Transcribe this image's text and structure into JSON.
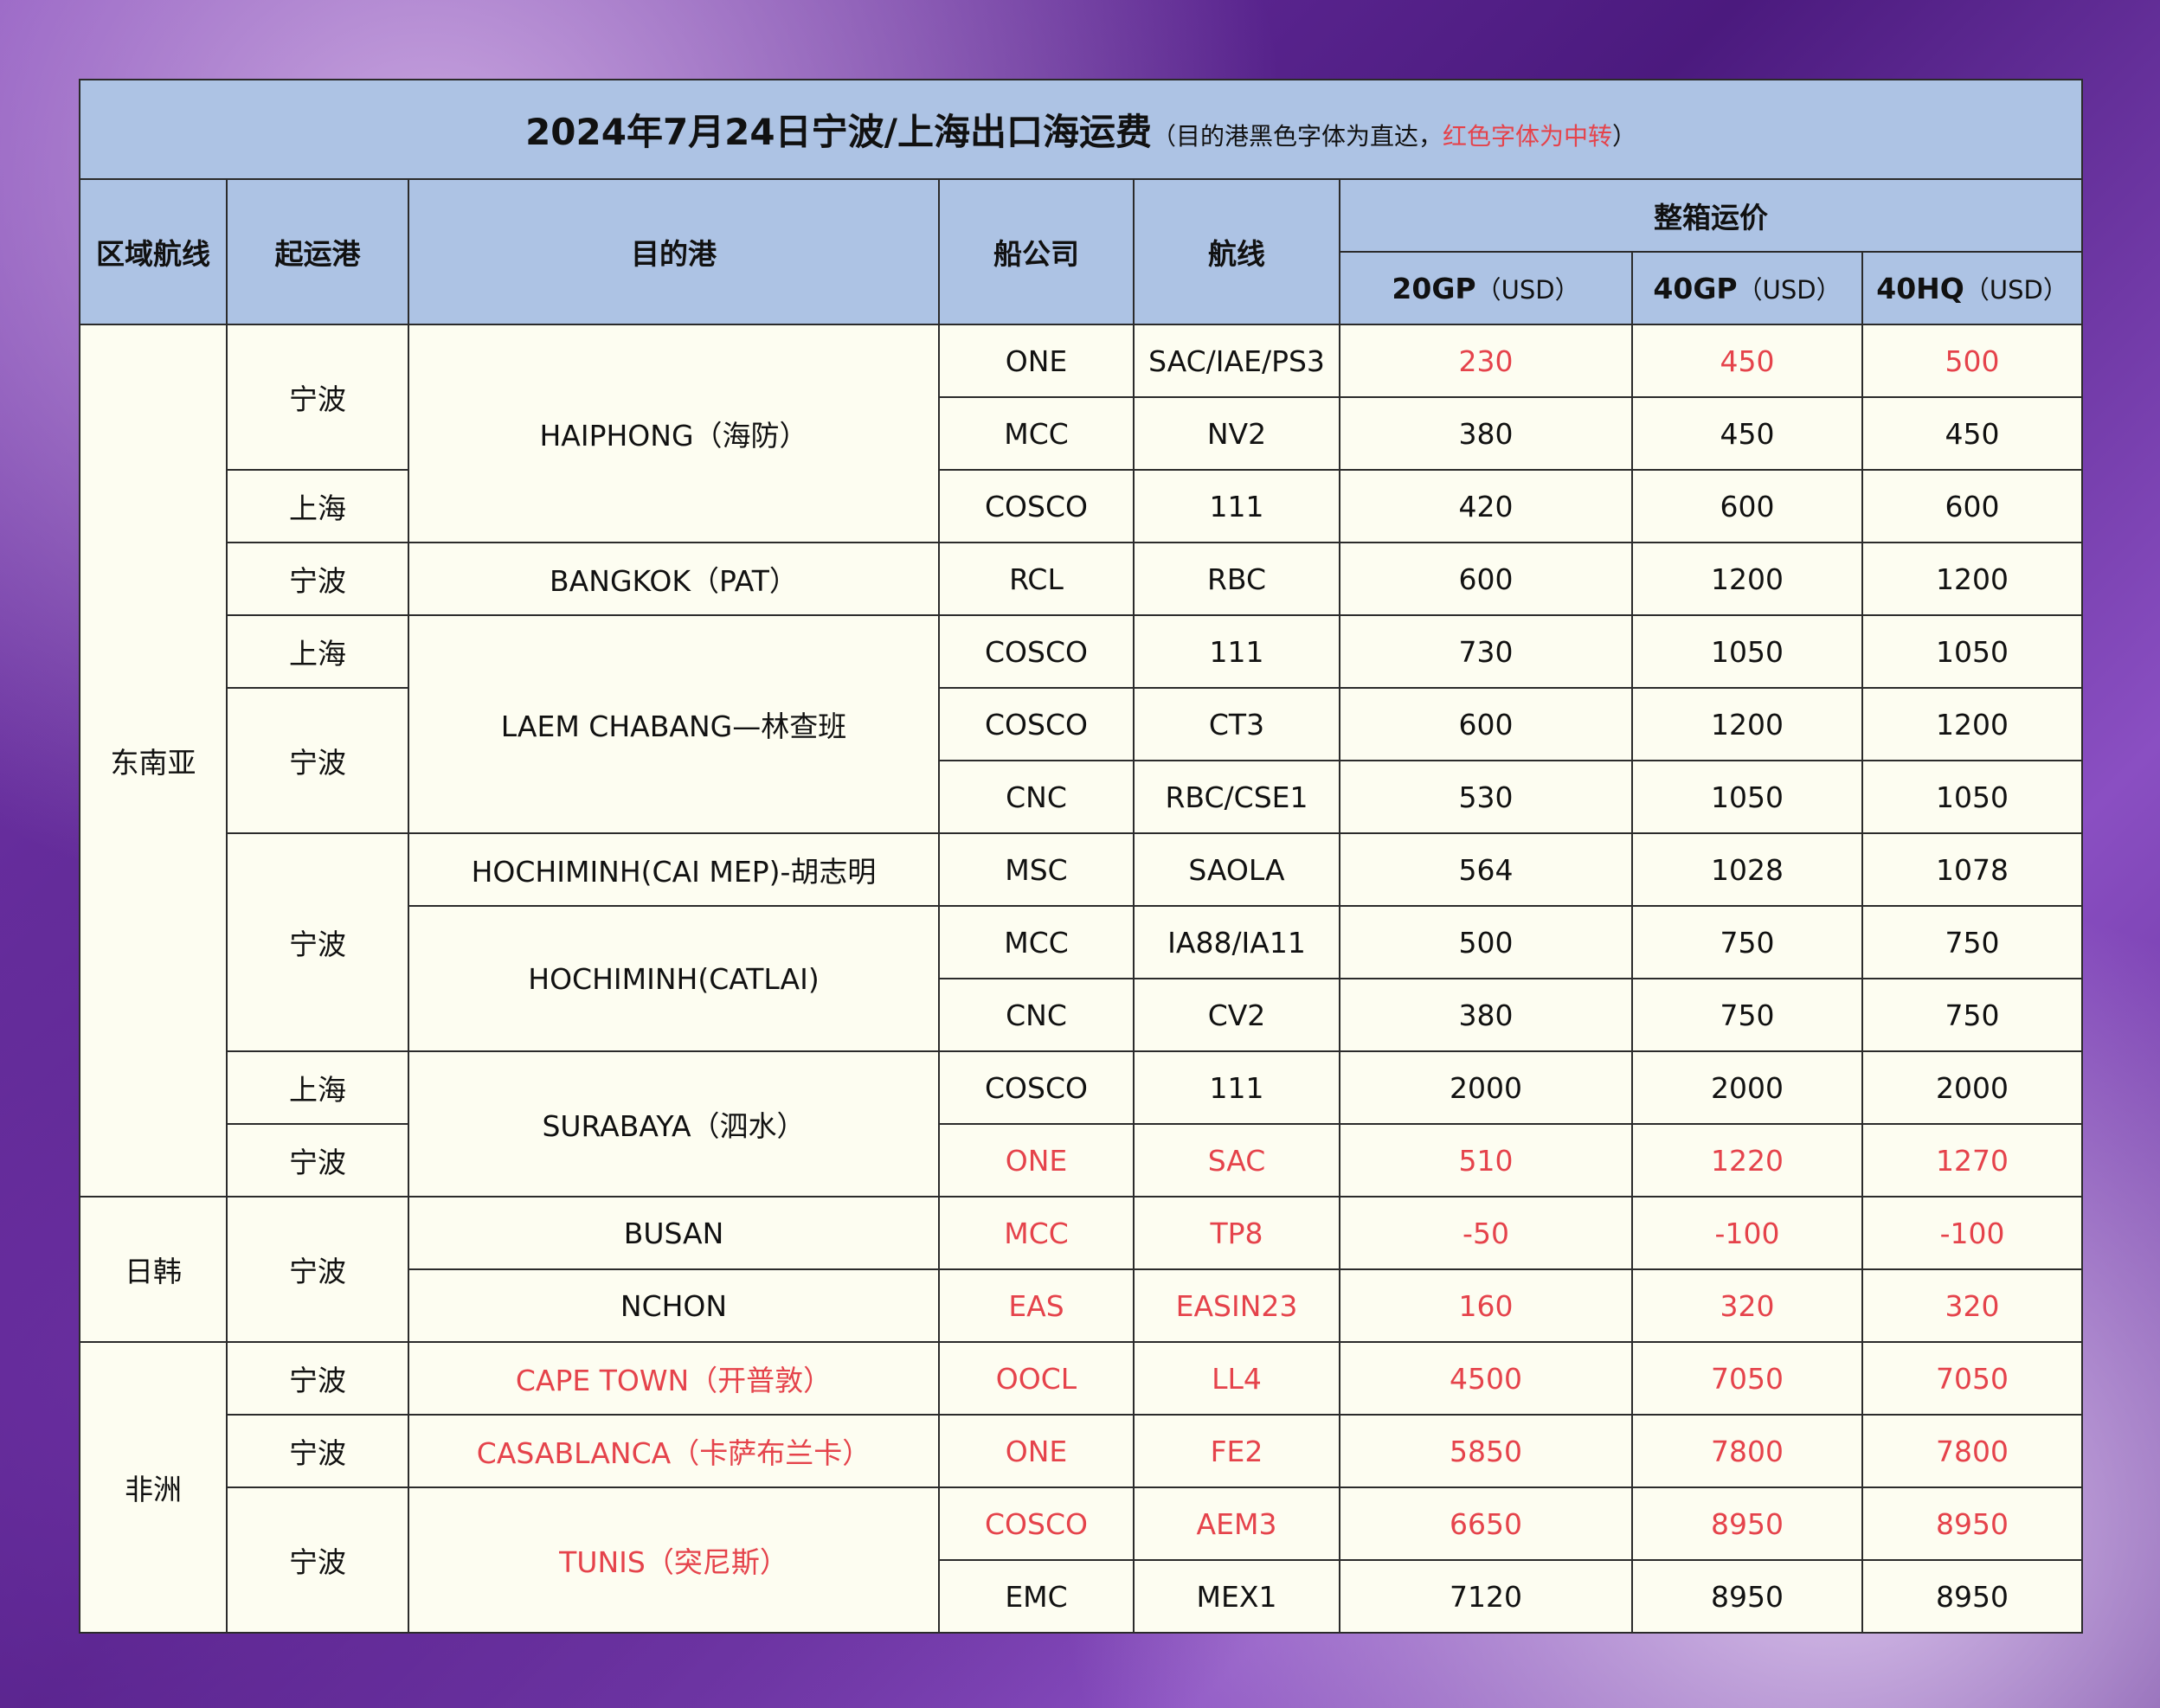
{
  "title": {
    "main": "2024年7月24日宁波/上海出口海运费",
    "note_open": "（目的港黑色字体为直达，",
    "note_red": "红色字体为中转",
    "note_close": "）"
  },
  "header": {
    "region": "区域航线",
    "origin": "起运港",
    "destination": "目的港",
    "carrier": "船公司",
    "route": "航线",
    "price": "整箱运价",
    "col_20gp": "20GP",
    "col_40gp": "40GP",
    "col_40hq": "40HQ",
    "unit": "（USD）"
  },
  "red_color": "#e5434b",
  "rows": [
    {
      "region": "东南亚",
      "origin": "宁波",
      "destination": "HAIPHONG（海防）",
      "carrier": "ONE",
      "route": "SAC/IAE/PS3",
      "prices": [
        230,
        450,
        500
      ],
      "prices_red": true
    },
    {
      "carrier": "MCC",
      "route": "NV2",
      "prices": [
        380,
        450,
        450
      ]
    },
    {
      "origin": "上海",
      "carrier": "COSCO",
      "route": "111",
      "prices": [
        420,
        600,
        600
      ]
    },
    {
      "origin": "宁波",
      "destination": "BANGKOK（PAT）",
      "carrier": "RCL",
      "route": "RBC",
      "prices": [
        600,
        1200,
        1200
      ]
    },
    {
      "origin": "上海",
      "destination": "LAEM CHABANG—林查班",
      "carrier": "COSCO",
      "route": "111",
      "prices": [
        730,
        1050,
        1050
      ]
    },
    {
      "origin": "宁波",
      "carrier": "COSCO",
      "route": "CT3",
      "prices": [
        600,
        1200,
        1200
      ]
    },
    {
      "carrier": "CNC",
      "route": "RBC/CSE1",
      "prices": [
        530,
        1050,
        1050
      ]
    },
    {
      "origin": "宁波",
      "destination": "HOCHIMINH(CAI MEP)-胡志明",
      "carrier": "MSC",
      "route": "SAOLA",
      "prices": [
        564,
        1028,
        1078
      ]
    },
    {
      "destination": "HOCHIMINH(CATLAI)",
      "carrier": "MCC",
      "route": "IA88/IA11",
      "prices": [
        500,
        750,
        750
      ]
    },
    {
      "carrier": "CNC",
      "route": "CV2",
      "prices": [
        380,
        750,
        750
      ]
    },
    {
      "origin": "上海",
      "destination": "SURABAYA（泗水）",
      "carrier": "COSCO",
      "route": "111",
      "prices": [
        2000,
        2000,
        2000
      ]
    },
    {
      "origin": "宁波",
      "carrier": "ONE",
      "route": "SAC",
      "prices": [
        510,
        1220,
        1270
      ],
      "carrier_red": true,
      "prices_red": true
    },
    {
      "region": "日韩",
      "origin": "宁波",
      "destination": "BUSAN",
      "carrier": "MCC",
      "route": "TP8",
      "prices": [
        -50,
        -100,
        -100
      ],
      "carrier_red": true,
      "prices_red": true
    },
    {
      "destination": "NCHON",
      "carrier": "EAS",
      "route": "EASIN23",
      "prices": [
        160,
        320,
        320
      ],
      "carrier_red": true,
      "prices_red": true
    },
    {
      "region": "非洲",
      "origin": "宁波",
      "destination": "CAPE TOWN（开普敦）",
      "destination_red": true,
      "carrier": "OOCL",
      "route": "LL4",
      "prices": [
        4500,
        7050,
        7050
      ],
      "carrier_red": true,
      "prices_red": true
    },
    {
      "origin": "宁波",
      "destination": "CASABLANCA（卡萨布兰卡）",
      "destination_red": true,
      "carrier": "ONE",
      "route": "FE2",
      "prices": [
        5850,
        7800,
        7800
      ],
      "carrier_red": true,
      "prices_red": true
    },
    {
      "origin": "宁波",
      "destination": "TUNIS（突尼斯）",
      "destination_red": true,
      "carrier": "COSCO",
      "route": "AEM3",
      "prices": [
        6650,
        8950,
        8950
      ],
      "carrier_red": true,
      "prices_red": true
    },
    {
      "carrier": "EMC",
      "route": "MEX1",
      "prices": [
        7120,
        8950,
        8950
      ]
    }
  ]
}
